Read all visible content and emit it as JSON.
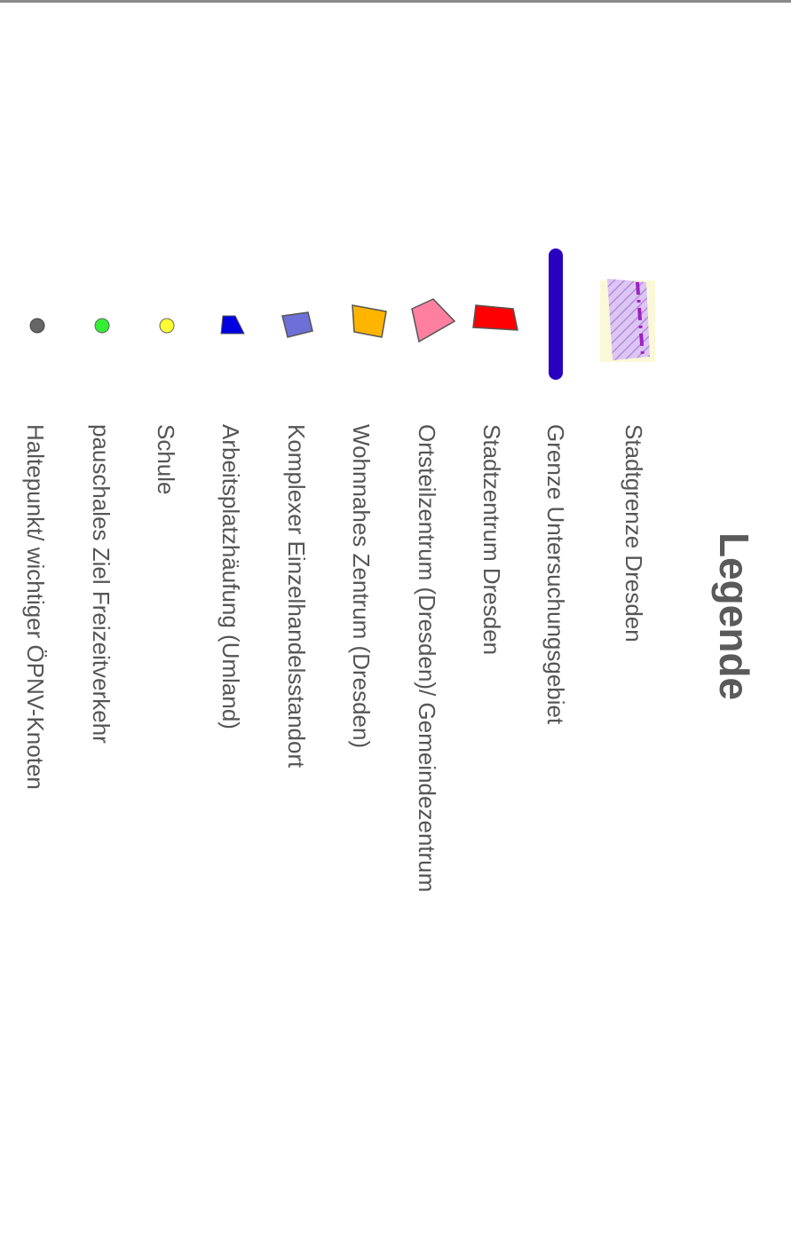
{
  "legend": {
    "title": "Legende",
    "items": [
      {
        "label": "Stadtgrenze Dresden",
        "icon": "city-boundary-hatch-icon",
        "color": "#c9a8e8",
        "accent": "#a020c0"
      },
      {
        "label": "Grenze Untersuchungsgebiet",
        "icon": "study-area-boundary-line-icon",
        "color": "#2a00c0"
      },
      {
        "label": "Stadtzentrum Dresden",
        "icon": "red-polygon-icon",
        "color": "#ff0000"
      },
      {
        "label": "Ortsteilzentrum (Dresden)/ Gemeindezentrum",
        "icon": "pink-polygon-icon",
        "color": "#ff7fa0"
      },
      {
        "label": "Wohnnahes Zentrum (Dresden)",
        "icon": "orange-polygon-icon",
        "color": "#ffb400"
      },
      {
        "label": "Komplexer Einzelhandelsstandort",
        "icon": "slate-blue-polygon-icon",
        "color": "#6f6fd8"
      },
      {
        "label": "Arbeitsplatzhäufung (Umland)",
        "icon": "blue-polygon-icon",
        "color": "#0000e0"
      },
      {
        "label": "Schule",
        "icon": "yellow-circle-icon",
        "color": "#ffff33"
      },
      {
        "label": "pauschales Ziel Freizeitverkehr",
        "icon": "green-circle-icon",
        "color": "#33ee33"
      },
      {
        "label": "Haltepunkt/ wichtiger ÖPNV-Knoten",
        "icon": "grey-circle-icon",
        "color": "#666666"
      }
    ]
  }
}
